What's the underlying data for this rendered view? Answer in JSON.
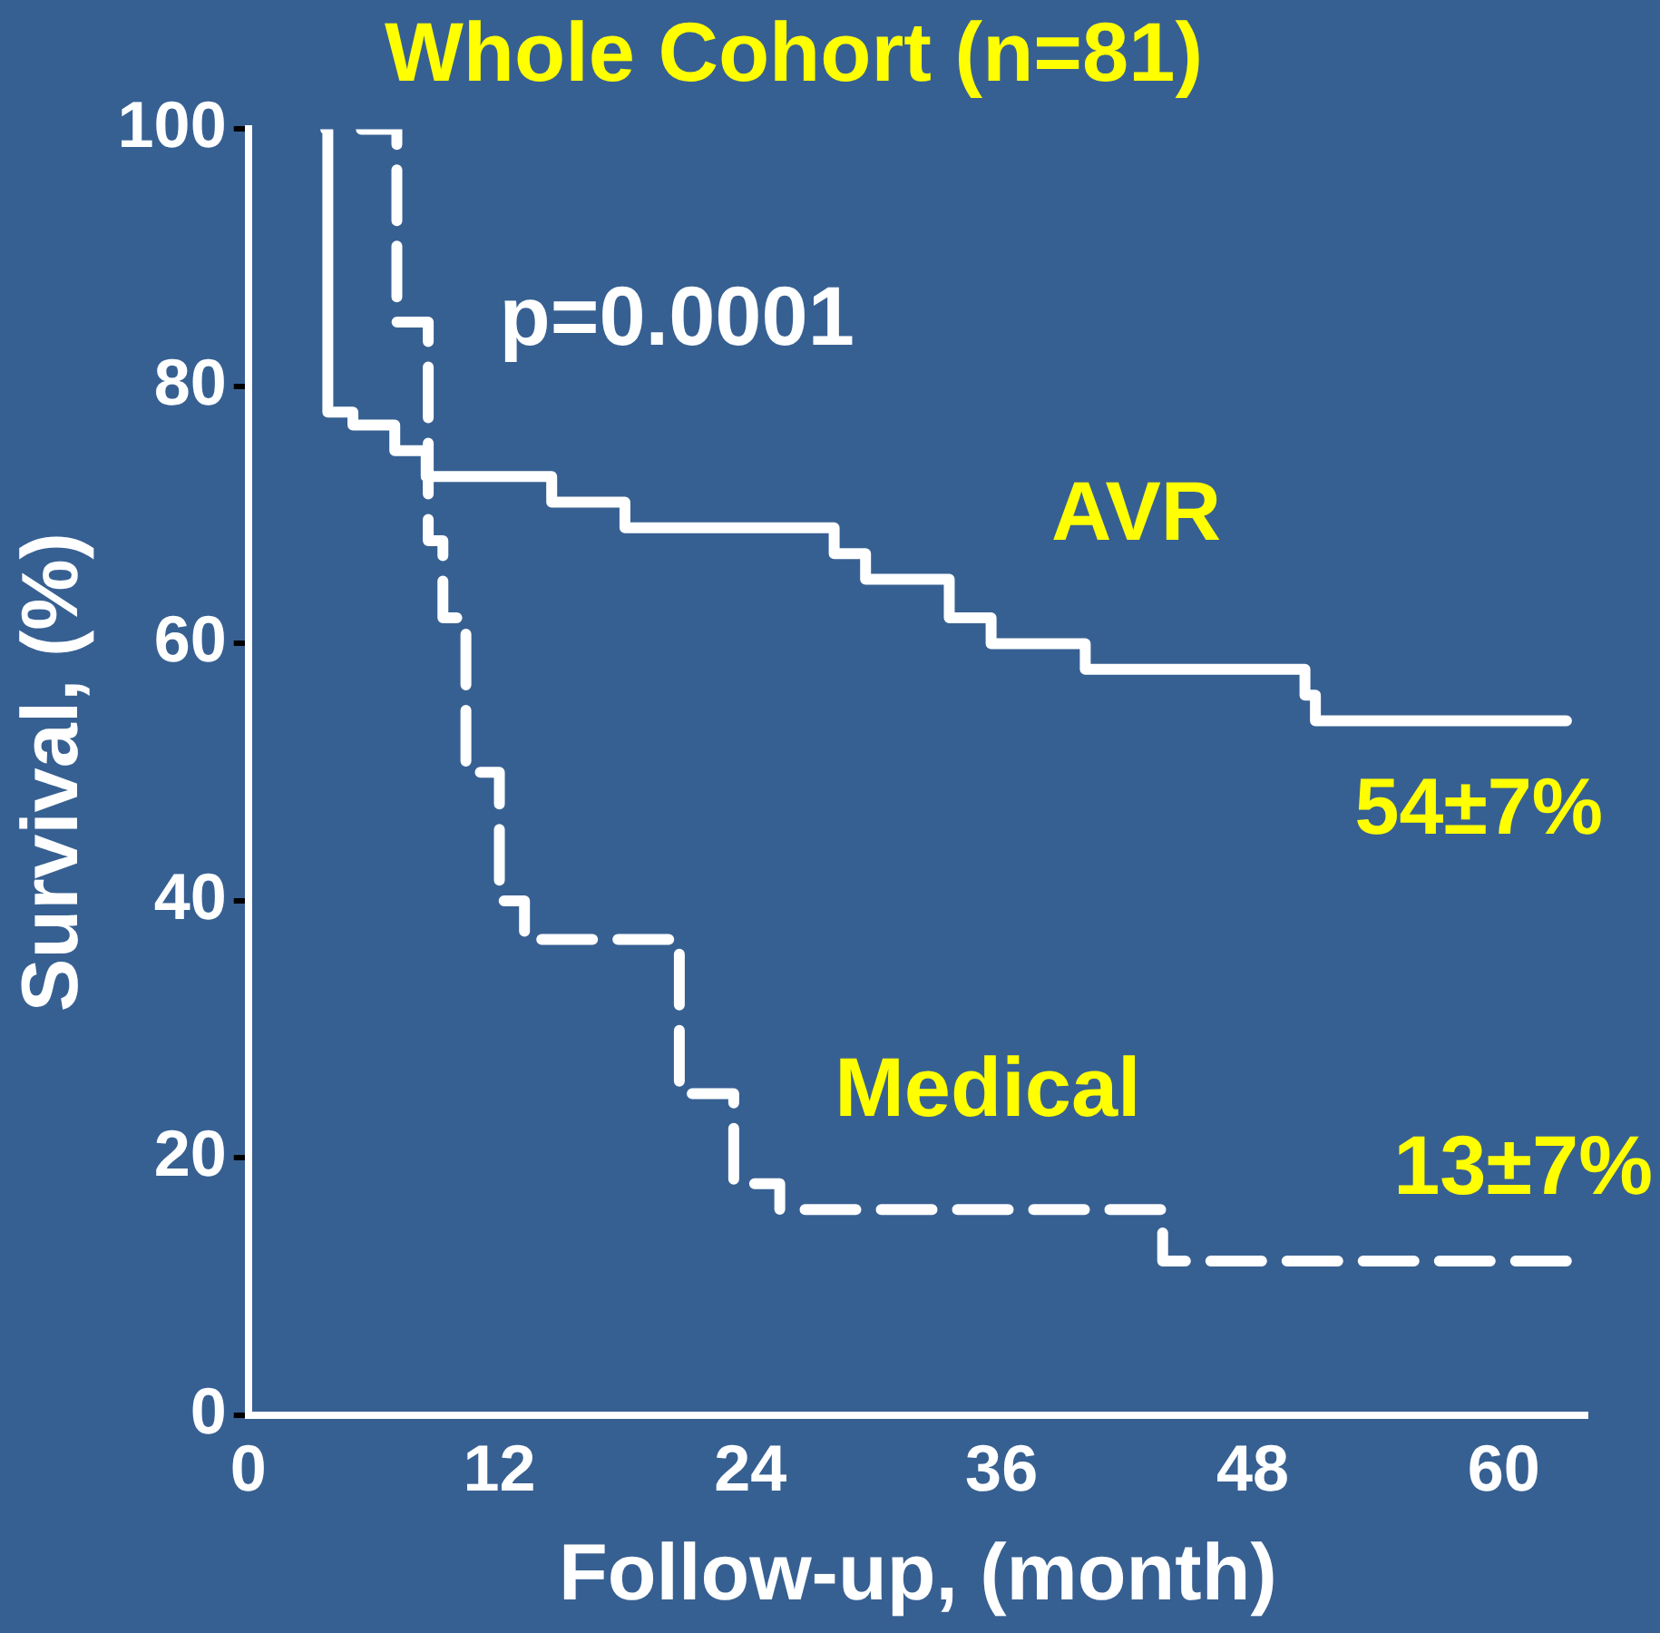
{
  "chart_data": {
    "type": "step",
    "title": "Whole Cohort (n=81)",
    "xlabel": "Follow-up, (month)",
    "ylabel": "Survival, (%)",
    "xlim": [
      0,
      64
    ],
    "xticks": [
      0,
      12,
      24,
      36,
      48,
      60
    ],
    "ylim": [
      0,
      100
    ],
    "yticks": [
      0,
      20,
      40,
      60,
      80,
      100
    ],
    "grid": false,
    "legend": false,
    "marker": "none",
    "series": [
      {
        "name": "AVR",
        "color": "#ffffff",
        "line_style": "solid",
        "x": [
          3.7,
          3.8,
          5,
          7,
          8.5,
          14.5,
          18,
          28,
          29.5,
          33.5,
          35.5,
          40,
          50.5,
          51,
          63
        ],
        "values": [
          100,
          78,
          77,
          75,
          73,
          71,
          69,
          67,
          65,
          62,
          60,
          58,
          56,
          54,
          54
        ]
      },
      {
        "name": "Medical",
        "color": "#ffffff",
        "line_style": "dashed",
        "x": [
          5.4,
          7.1,
          8.6,
          9.3,
          10.4,
          12,
          13.2,
          20.6,
          23.2,
          25.4,
          43.7,
          64
        ],
        "values": [
          100,
          85,
          68,
          62,
          50,
          40,
          37,
          25,
          18,
          16,
          12,
          12
        ]
      }
    ],
    "annotations": [
      "p=0.0001",
      {
        "text": "54±7%",
        "x": 63,
        "y": 54
      },
      "13±7%"
    ]
  }
}
